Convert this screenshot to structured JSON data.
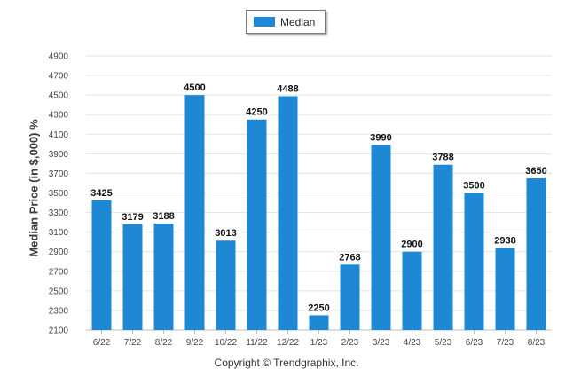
{
  "legend": {
    "label": "Median",
    "color": "#1e88d5"
  },
  "ylabel": "Median Price (in $,000) %",
  "footer": "Copyright © Trendgraphix, Inc.",
  "chart_data": {
    "type": "bar",
    "categories": [
      "6/22",
      "7/22",
      "8/22",
      "9/22",
      "10/22",
      "11/22",
      "12/22",
      "1/23",
      "2/23",
      "3/23",
      "4/23",
      "5/23",
      "6/23",
      "7/23",
      "8/23"
    ],
    "series": [
      {
        "name": "Median",
        "values": [
          3425,
          3179,
          3188,
          4500,
          3013,
          4250,
          4488,
          2250,
          2768,
          3990,
          2900,
          3788,
          3500,
          2938,
          3650
        ]
      }
    ],
    "data_labels": [
      "3425",
      "3179",
      "3188",
      "4500",
      "3013",
      "4250",
      "4488",
      "2250",
      "2768",
      "3990",
      "2900",
      "3788",
      "3500",
      "2938",
      "3650"
    ],
    "yticks": [
      2100,
      2300,
      2500,
      2700,
      2900,
      3100,
      3300,
      3500,
      3700,
      3900,
      4100,
      4300,
      4500,
      4700,
      4900
    ],
    "ylim": [
      2100,
      4900
    ],
    "grid": true,
    "legend_position": "top-center",
    "bar_color": "#1e88d5"
  }
}
